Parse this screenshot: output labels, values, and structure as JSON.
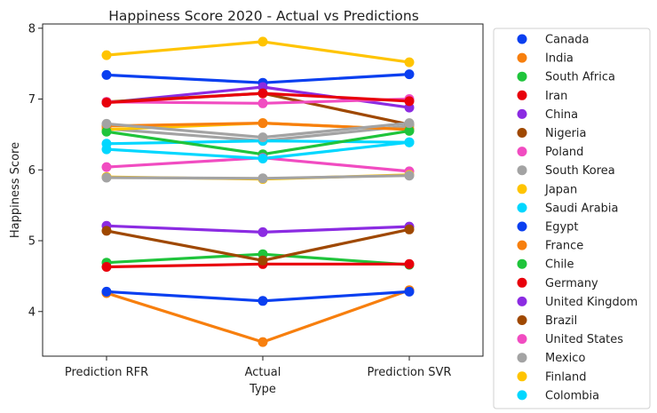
{
  "chart_data": {
    "type": "line",
    "title": "Happiness Score 2020 - Actual vs Predictions",
    "xlabel": "Type",
    "ylabel": "Happiness Score",
    "categories": [
      "Prediction RFR",
      "Actual",
      "Prediction SVR"
    ],
    "ylim": [
      3.37,
      8.06
    ],
    "yticks": [
      4,
      5,
      6,
      7,
      8
    ],
    "grid": false,
    "legend_position": "outside-right",
    "series": [
      {
        "name": "Canada",
        "color": "#0a3ff0",
        "values": [
          7.34,
          7.23,
          7.35
        ]
      },
      {
        "name": "India",
        "color": "#f77f0e",
        "values": [
          4.26,
          3.57,
          4.3
        ]
      },
      {
        "name": "South Africa",
        "color": "#1fc43b",
        "values": [
          4.69,
          4.81,
          4.66
        ]
      },
      {
        "name": "Iran",
        "color": "#e8000b",
        "values": [
          4.63,
          4.67,
          4.67
        ]
      },
      {
        "name": "China",
        "color": "#8b2be2",
        "values": [
          6.95,
          7.17,
          6.88
        ]
      },
      {
        "name": "Nigeria",
        "color": "#9f4800",
        "values": [
          6.96,
          7.08,
          6.64
        ]
      },
      {
        "name": "Poland",
        "color": "#f14cc1",
        "values": [
          6.96,
          6.94,
          7.0
        ]
      },
      {
        "name": "South Korea",
        "color": "#a3a3a3",
        "values": [
          6.58,
          6.41,
          6.62
        ]
      },
      {
        "name": "Japan",
        "color": "#ffc400",
        "values": [
          6.57,
          6.66,
          6.57
        ]
      },
      {
        "name": "Saudi Arabia",
        "color": "#00d7ff",
        "values": [
          6.37,
          6.41,
          6.39
        ]
      },
      {
        "name": "Egypt",
        "color": "#0a3ff0",
        "values": [
          4.28,
          4.15,
          4.28
        ]
      },
      {
        "name": "France",
        "color": "#f77f0e",
        "values": [
          6.62,
          6.66,
          6.57
        ]
      },
      {
        "name": "Chile",
        "color": "#1fc43b",
        "values": [
          6.54,
          6.22,
          6.55
        ]
      },
      {
        "name": "Germany",
        "color": "#e8000b",
        "values": [
          6.95,
          7.08,
          6.97
        ]
      },
      {
        "name": "United Kingdom",
        "color": "#8b2be2",
        "values": [
          5.21,
          5.12,
          5.2
        ]
      },
      {
        "name": "Brazil",
        "color": "#9f4800",
        "values": [
          5.14,
          4.72,
          5.16
        ]
      },
      {
        "name": "United States",
        "color": "#f14cc1",
        "values": [
          6.04,
          6.17,
          5.98
        ]
      },
      {
        "name": "Mexico",
        "color": "#a3a3a3",
        "values": [
          6.65,
          6.46,
          6.66
        ]
      },
      {
        "name": "Finland",
        "color": "#ffc400",
        "values": [
          7.62,
          7.81,
          7.52
        ]
      },
      {
        "name": "Colombia",
        "color": "#00d7ff",
        "values": [
          6.29,
          6.16,
          6.39
        ]
      },
      {
        "name": "",
        "color": "#ffc400",
        "values": [
          5.9,
          5.87,
          5.93
        ]
      },
      {
        "name": "",
        "color": "#a3a3a3",
        "values": [
          5.89,
          5.88,
          5.92
        ]
      }
    ]
  }
}
